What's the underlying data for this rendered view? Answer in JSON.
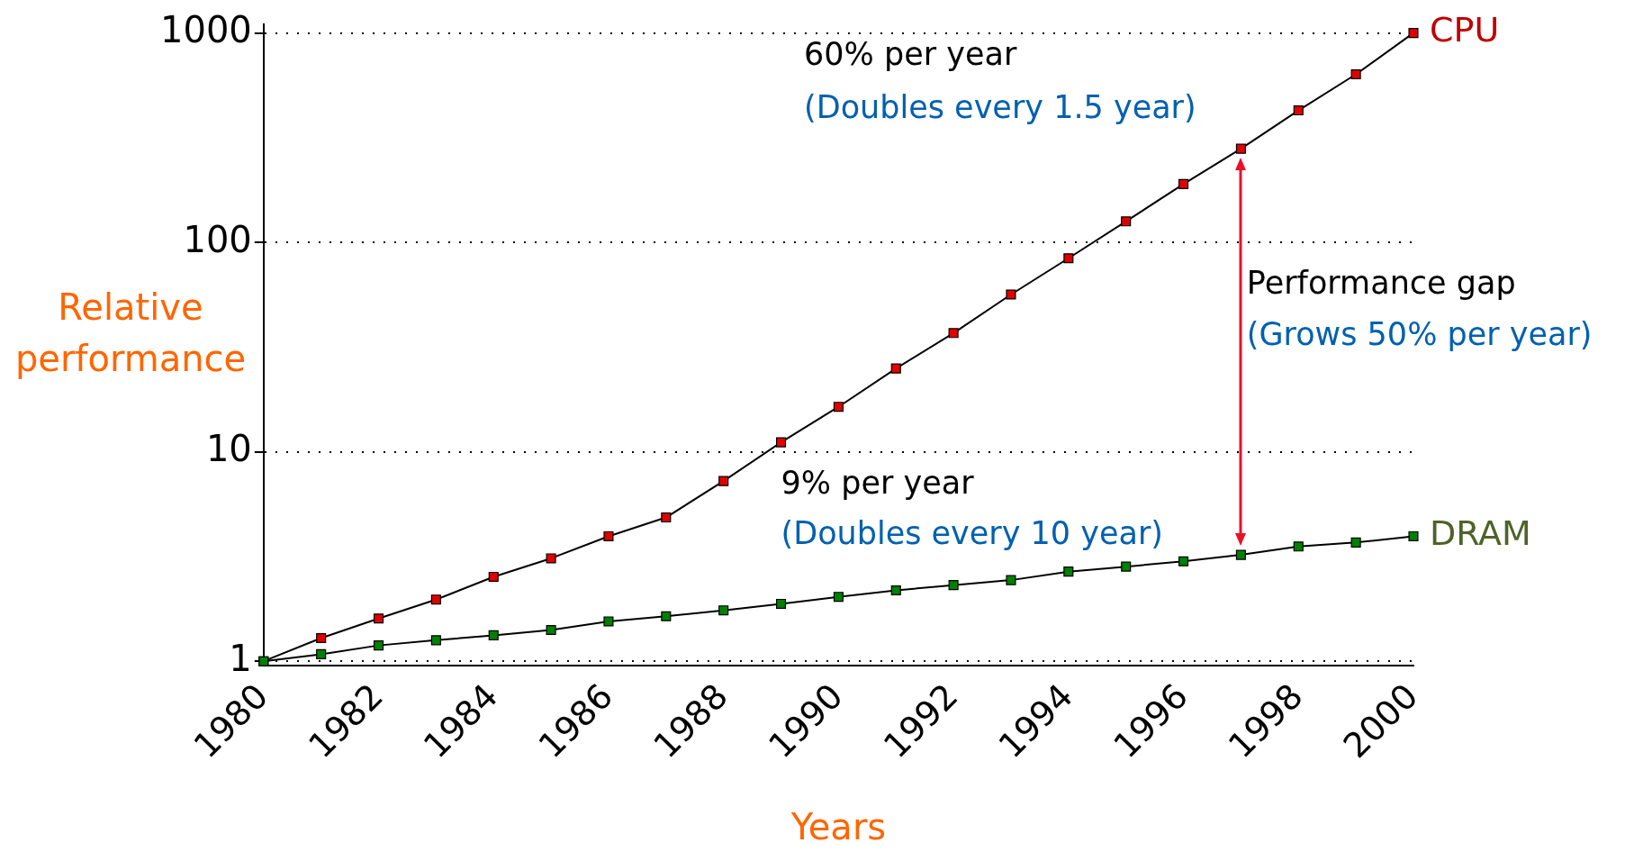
{
  "chart_data": {
    "type": "line",
    "xlabel": "Years",
    "ylabel": "Relative performance",
    "x": [
      1980,
      1981,
      1982,
      1983,
      1984,
      1985,
      1986,
      1987,
      1988,
      1989,
      1990,
      1991,
      1992,
      1993,
      1994,
      1995,
      1996,
      1997,
      1998,
      1999,
      2000
    ],
    "series": [
      {
        "name": "CPU",
        "color": "#e00000",
        "values": [
          1,
          1.29,
          1.6,
          1.97,
          2.53,
          3.1,
          3.95,
          4.86,
          7.25,
          11.1,
          16.4,
          25,
          36.9,
          56.4,
          84,
          126,
          190,
          280,
          427,
          635,
          1000
        ]
      },
      {
        "name": "DRAM",
        "color": "#008000",
        "values": [
          1,
          1.08,
          1.19,
          1.26,
          1.33,
          1.41,
          1.55,
          1.64,
          1.75,
          1.88,
          2.03,
          2.18,
          2.31,
          2.44,
          2.68,
          2.83,
          3.0,
          3.22,
          3.53,
          3.69,
          3.95
        ]
      }
    ],
    "xlim": [
      1980,
      2000
    ],
    "xticks": [
      1980,
      1982,
      1984,
      1986,
      1988,
      1990,
      1992,
      1994,
      1996,
      1998,
      2000
    ],
    "ylim": [
      0.95,
      1100
    ],
    "yticks": [
      1,
      10,
      100,
      1000
    ],
    "log": "y",
    "grid": "y",
    "marker": "square",
    "legend": false,
    "annotations": [
      "60% per year",
      "(Doubles every 1.5 year)",
      "9% per year",
      "(Doubles every 10 year)",
      "Performance gap",
      "(Grows 50% per year)"
    ]
  }
}
